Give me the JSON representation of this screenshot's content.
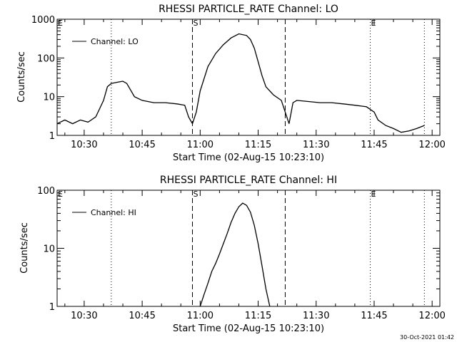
{
  "footer": {
    "timestamp": "30-Oct-2021 01:42"
  },
  "chart_data": [
    {
      "type": "line",
      "title": "RHESSI PARTICLE_RATE Channel: LO",
      "xlabel": "Start Time (02-Aug-15 10:23:10)",
      "ylabel": "Counts/sec",
      "yscale": "log",
      "xlim": [
        "10:23",
        "12:02"
      ],
      "ylim": [
        1,
        1000
      ],
      "xticks": [
        "10:30",
        "10:45",
        "11:00",
        "11:15",
        "11:30",
        "11:45",
        "12:00"
      ],
      "yticks": [
        "1",
        "10",
        "100",
        "1000"
      ],
      "legend": {
        "position": "top-left",
        "entries": [
          "Channel: LO"
        ]
      },
      "markers": [
        {
          "label": "E",
          "time": "10:23",
          "style": "dotted"
        },
        {
          "label": "",
          "time": "10:37",
          "style": "dotted"
        },
        {
          "label": "S",
          "time": "10:58",
          "style": "dashed"
        },
        {
          "label": "",
          "time": "11:22",
          "style": "dashed"
        },
        {
          "label": "E",
          "time": "11:44",
          "style": "dotted"
        },
        {
          "label": "",
          "time": "11:58",
          "style": "dotted"
        }
      ],
      "series": [
        {
          "name": "Channel: LO",
          "x": [
            "10:23",
            "10:25",
            "10:27",
            "10:29",
            "10:31",
            "10:33",
            "10:35",
            "10:36",
            "10:37",
            "10:39",
            "10:40",
            "10:41",
            "10:43",
            "10:45",
            "10:48",
            "10:51",
            "10:54",
            "10:56",
            "10:57",
            "10:58",
            "10:59",
            "11:00",
            "11:02",
            "11:04",
            "11:06",
            "11:08",
            "11:10",
            "11:12",
            "11:13",
            "11:14",
            "11:15",
            "11:16",
            "11:17",
            "11:19",
            "11:21",
            "11:22",
            "11:23",
            "11:24",
            "11:25",
            "11:28",
            "11:31",
            "11:34",
            "11:37",
            "11:40",
            "11:43",
            "11:45",
            "11:46",
            "11:48",
            "11:50",
            "11:52",
            "11:54",
            "11:56",
            "11:58"
          ],
          "y": [
            2,
            2.5,
            2,
            2.5,
            2.2,
            3,
            8,
            18,
            22,
            24,
            25,
            22,
            10,
            8,
            7,
            7,
            6.5,
            6,
            3,
            2,
            4,
            14,
            60,
            130,
            220,
            330,
            420,
            380,
            300,
            180,
            80,
            35,
            18,
            11,
            8,
            4,
            2,
            7,
            8,
            7.5,
            7,
            7,
            6.5,
            6,
            5.5,
            4,
            2.5,
            1.8,
            1.5,
            1.2,
            1.3,
            1.5,
            1.8
          ]
        }
      ]
    },
    {
      "type": "line",
      "title": "RHESSI PARTICLE_RATE Channel: HI",
      "xlabel": "Start Time (02-Aug-15 10:23:10)",
      "ylabel": "Counts/sec",
      "yscale": "log",
      "xlim": [
        "10:23",
        "12:02"
      ],
      "ylim": [
        1,
        100
      ],
      "xticks": [
        "10:30",
        "10:45",
        "11:00",
        "11:15",
        "11:30",
        "11:45",
        "12:00"
      ],
      "yticks": [
        "1",
        "10",
        "100"
      ],
      "legend": {
        "position": "top-left",
        "entries": [
          "Channel: HI"
        ]
      },
      "markers": [
        {
          "label": "E",
          "time": "10:23",
          "style": "dotted"
        },
        {
          "label": "",
          "time": "10:37",
          "style": "dotted"
        },
        {
          "label": "S",
          "time": "10:58",
          "style": "dashed"
        },
        {
          "label": "",
          "time": "11:22",
          "style": "dashed"
        },
        {
          "label": "E",
          "time": "11:44",
          "style": "dotted"
        },
        {
          "label": "",
          "time": "11:58",
          "style": "dotted"
        }
      ],
      "series": [
        {
          "name": "Channel: HI",
          "x": [
            "11:00",
            "11:01",
            "11:02",
            "11:03",
            "11:04",
            "11:05",
            "11:06",
            "11:07",
            "11:08",
            "11:09",
            "11:10",
            "11:11",
            "11:12",
            "11:13",
            "11:14",
            "11:15",
            "11:16",
            "11:17",
            "11:18"
          ],
          "y": [
            1,
            1.6,
            2.5,
            4,
            5.5,
            8,
            12,
            18,
            28,
            40,
            52,
            60,
            55,
            42,
            25,
            12,
            5,
            2,
            1
          ]
        }
      ]
    }
  ]
}
